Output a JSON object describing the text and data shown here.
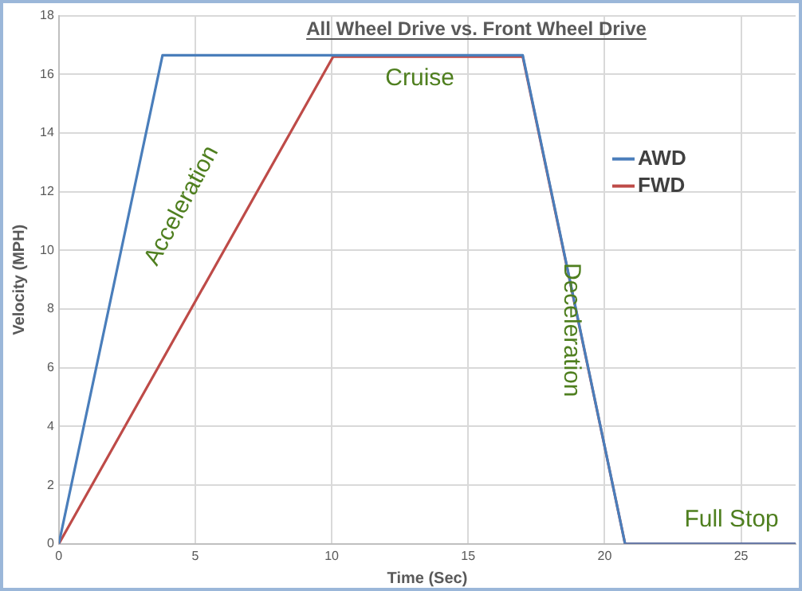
{
  "chart_data": {
    "type": "line",
    "title": "All Wheel Drive vs. Front Wheel Drive",
    "xlabel": "Time (Sec)",
    "ylabel": "Velocity (MPH)",
    "xlim": [
      0,
      27
    ],
    "xticks": [
      0,
      5,
      10,
      15,
      20,
      25
    ],
    "ylim": [
      0,
      18
    ],
    "yticks": [
      0,
      2,
      4,
      6,
      8,
      10,
      12,
      14,
      16,
      18
    ],
    "grid": true,
    "legend": "right",
    "marker": "none",
    "series": [
      {
        "name": "AWD",
        "color": "#4a7ebb",
        "x": [
          0,
          3.8,
          17,
          20.75,
          27
        ],
        "values": [
          0,
          16.65,
          16.65,
          0,
          0
        ]
      },
      {
        "name": "FWD",
        "color": "#be4b48",
        "x": [
          0,
          10.05,
          17,
          20.75,
          27
        ],
        "values": [
          0,
          16.6,
          16.6,
          0,
          0
        ]
      }
    ],
    "annotations": [
      "Acceleration",
      "Cruise",
      "Deceleration",
      "Full Stop"
    ]
  }
}
